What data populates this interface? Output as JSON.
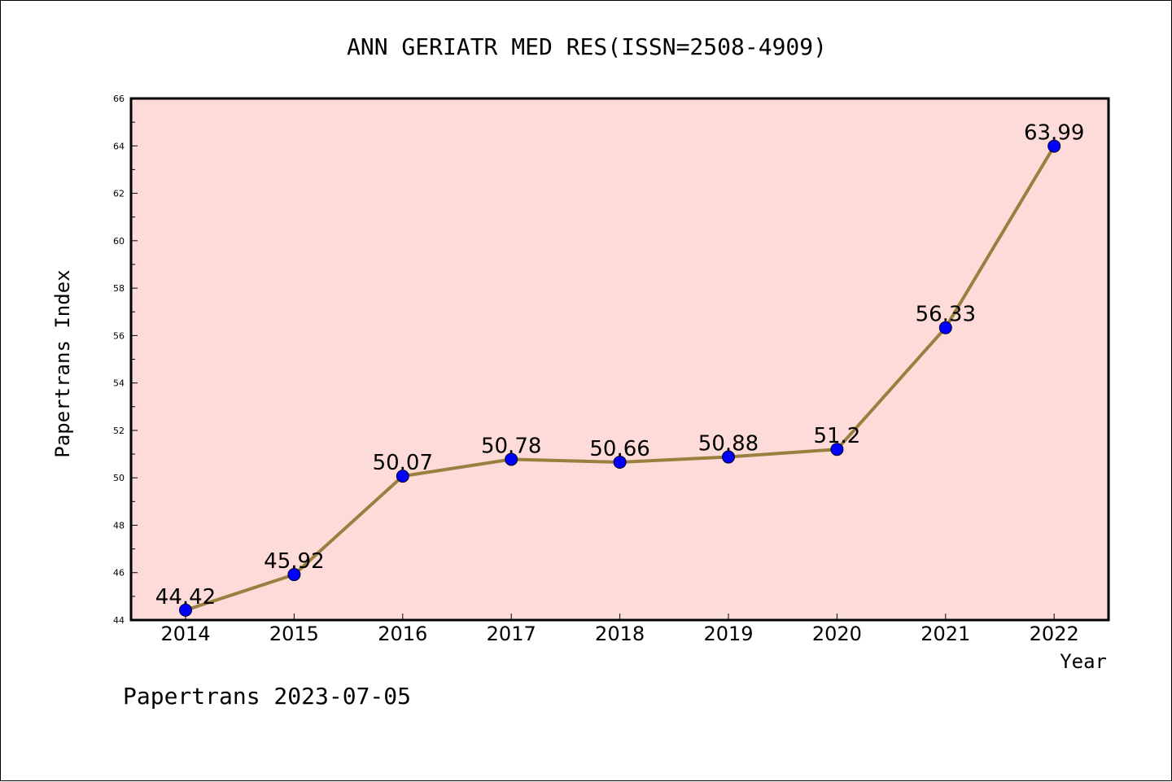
{
  "chart_data": {
    "type": "line",
    "title": "ANN GERIATR MED RES(ISSN=2508-4909)",
    "xlabel": "Year",
    "ylabel": "Papertrans Index",
    "footer": "Papertrans 2023-07-05",
    "categories": [
      "2014",
      "2015",
      "2016",
      "2017",
      "2018",
      "2019",
      "2020",
      "2021",
      "2022"
    ],
    "values": [
      44.42,
      45.92,
      50.07,
      50.78,
      50.66,
      50.88,
      51.2,
      56.33,
      63.99
    ],
    "data_labels": [
      "44.42",
      "45.92",
      "50.07",
      "50.78",
      "50.66",
      "50.88",
      "51.2",
      "56.33",
      "63.99"
    ],
    "ylim": [
      44,
      66
    ],
    "yticks": [
      44,
      46,
      48,
      50,
      52,
      54,
      56,
      58,
      60,
      62,
      64,
      66
    ],
    "grid": false,
    "colors": {
      "plot_background": "#fddbd8",
      "line": "#9a8040",
      "marker": "#0000ff",
      "axis": "#000000"
    }
  }
}
